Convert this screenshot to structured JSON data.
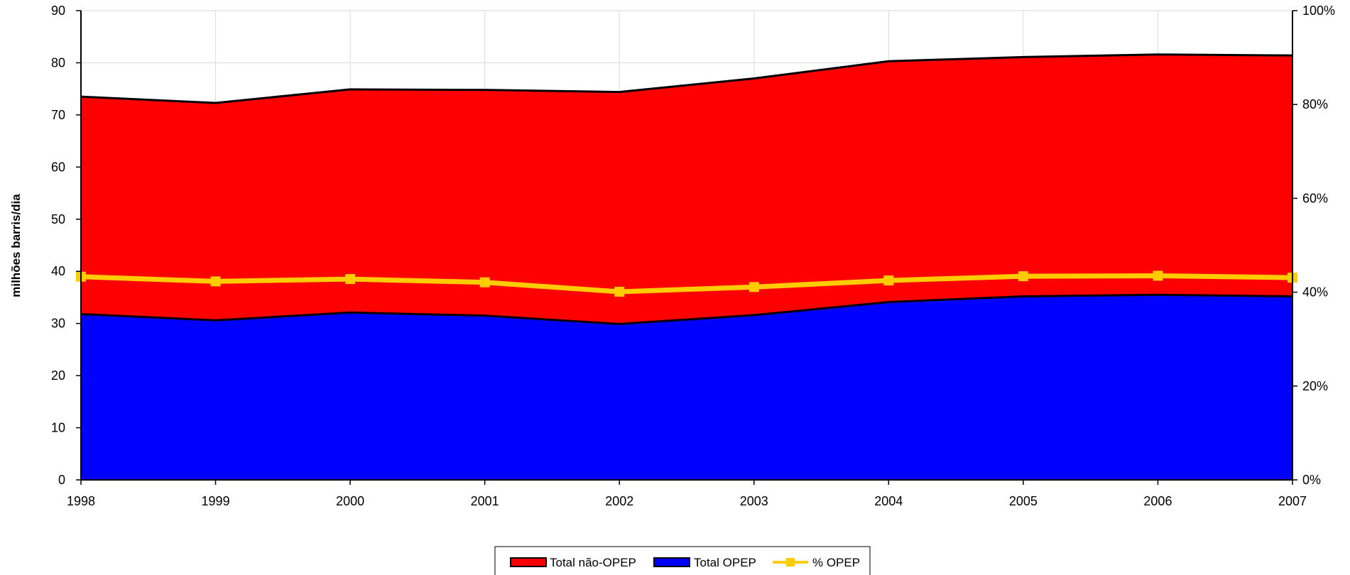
{
  "chart_data": {
    "type": "area",
    "x": [
      "1998",
      "1999",
      "2000",
      "2001",
      "2002",
      "2003",
      "2004",
      "2005",
      "2006",
      "2007"
    ],
    "series": [
      {
        "name": "Total OPEP",
        "kind": "stacked-area",
        "color": "#0000ff",
        "values": [
          31.8,
          30.6,
          32.1,
          31.5,
          29.9,
          31.6,
          34.1,
          35.2,
          35.5,
          35.2
        ]
      },
      {
        "name": "Total não-OPEP",
        "kind": "stacked-area",
        "color": "#ff0000",
        "values": [
          41.7,
          41.7,
          42.8,
          43.3,
          44.5,
          45.4,
          46.2,
          45.9,
          46.1,
          46.2
        ]
      },
      {
        "name": "% OPEP",
        "kind": "line",
        "axis": "right",
        "color": "#ffcc00",
        "values": [
          0.433,
          0.423,
          0.428,
          0.421,
          0.401,
          0.411,
          0.425,
          0.434,
          0.435,
          0.431
        ]
      }
    ],
    "legend_order": [
      "Total não-OPEP",
      "Total OPEP",
      "% OPEP"
    ],
    "legend_position": "bottom",
    "ylabel": "milhões barris/dia",
    "ylim": [
      0,
      90
    ],
    "y_ticks": [
      "0",
      "10",
      "20",
      "30",
      "40",
      "50",
      "60",
      "70",
      "80",
      "90"
    ],
    "y2lim": [
      0,
      1
    ],
    "y2_ticks": [
      "0%",
      "20%",
      "40%",
      "60%",
      "80%",
      "100%"
    ],
    "grid": true,
    "outline_color": "#000000",
    "grid_color": "#d9d9d9"
  }
}
